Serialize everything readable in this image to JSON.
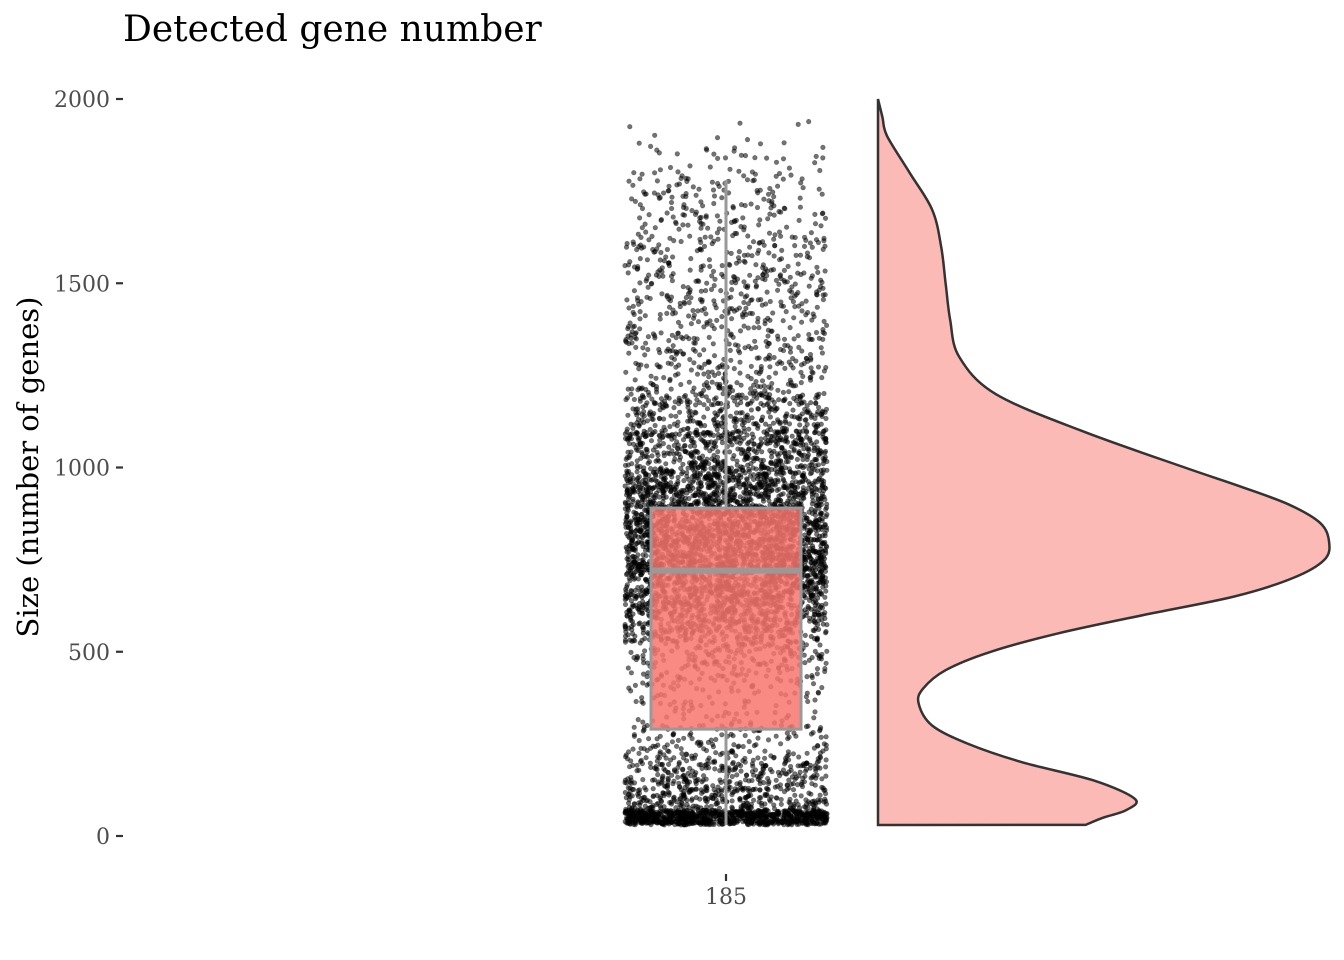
{
  "chart_data": {
    "type": "raincloud",
    "title": "Detected gene number",
    "xlabel": "",
    "ylabel": "Size (number of genes)",
    "categories": [
      "185"
    ],
    "ylim": [
      0,
      2000
    ],
    "yticks": [
      0,
      500,
      1000,
      1500,
      2000
    ],
    "grid": false,
    "legend": "none",
    "colors": {
      "box_fill": "#f8766d",
      "box_outline": "#999999",
      "violin_fill": "#f8766d",
      "violin_outline": "#333333",
      "points": "#000000"
    },
    "boxplot": {
      "whisker_low": 30,
      "q1": 290,
      "median": 720,
      "q3": 890,
      "whisker_high": 1780
    },
    "points": {
      "count": 6000,
      "min": 30,
      "max": 2000
    },
    "density": {
      "y": [
        2000,
        1950,
        1900,
        1800,
        1700,
        1600,
        1500,
        1400,
        1300,
        1200,
        1100,
        1000,
        950,
        900,
        850,
        800,
        750,
        700,
        650,
        600,
        550,
        500,
        450,
        400,
        360,
        300,
        250,
        200,
        150,
        100,
        70,
        50,
        30
      ],
      "density": [
        0.0,
        0.01,
        0.02,
        0.07,
        0.12,
        0.14,
        0.15,
        0.16,
        0.18,
        0.26,
        0.45,
        0.68,
        0.8,
        0.91,
        0.98,
        1.0,
        0.99,
        0.92,
        0.79,
        0.59,
        0.4,
        0.25,
        0.15,
        0.1,
        0.09,
        0.12,
        0.2,
        0.32,
        0.48,
        0.57,
        0.55,
        0.5,
        0.46
      ]
    }
  }
}
